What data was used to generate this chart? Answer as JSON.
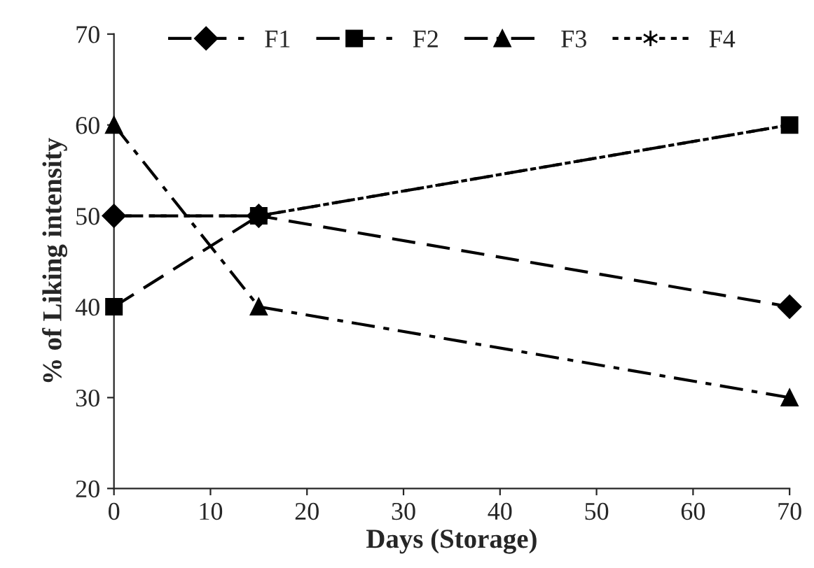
{
  "chart_data": {
    "type": "line",
    "xlabel": "Days (Storage)",
    "ylabel": "% of Liking intensity",
    "x": [
      0,
      15,
      70
    ],
    "series": [
      {
        "name": "F1",
        "color": "#000000",
        "values": [
          50,
          50,
          40
        ],
        "marker": "diamond",
        "line_style": "dashed"
      },
      {
        "name": "F2",
        "color": "#000000",
        "values": [
          40,
          50,
          60
        ],
        "marker": "square",
        "line_style": "dashed"
      },
      {
        "name": "F3",
        "color": "#000000",
        "values": [
          60,
          40,
          30
        ],
        "marker": "triangle",
        "line_style": "dashdot"
      },
      {
        "name": "F4",
        "color": "#000000",
        "values": [
          50,
          50,
          60
        ],
        "marker": "cross",
        "line_style": "dotted"
      }
    ],
    "xlim": [
      0,
      70
    ],
    "xticks": [
      0,
      10,
      20,
      30,
      40,
      50,
      60,
      70
    ],
    "ylim": [
      20,
      70
    ],
    "yticks": [
      20,
      30,
      40,
      50,
      60,
      70
    ],
    "grid": false,
    "legend": "top"
  }
}
